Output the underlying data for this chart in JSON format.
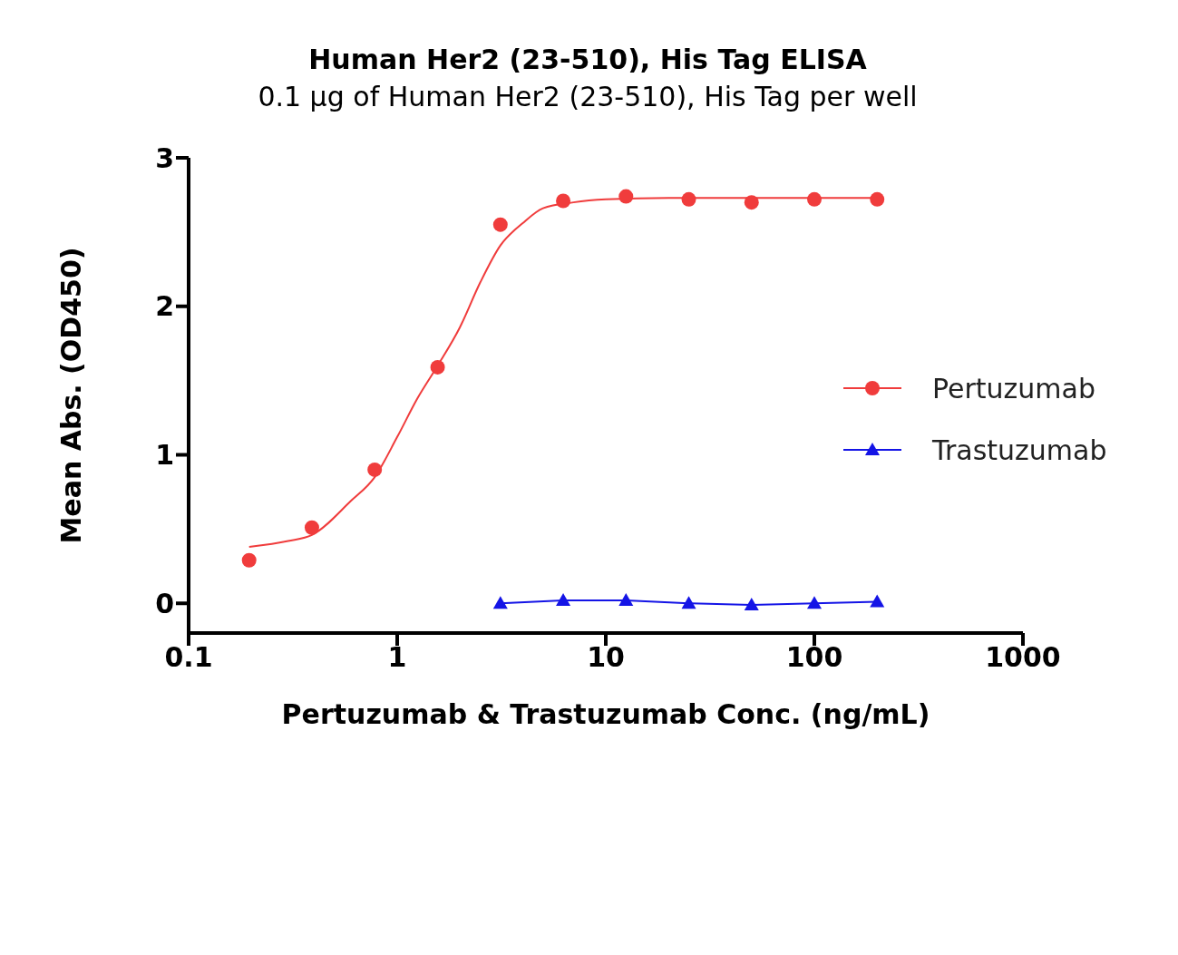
{
  "chart_data": {
    "type": "scatter",
    "title": "Human Her2 (23-510), His Tag ELISA",
    "subtitle": "0.1 μg of Human Her2 (23-510), His Tag per well",
    "xlabel": "Pertuzumab & Trastuzumab Conc. (ng/mL)",
    "ylabel": "Mean Abs. (OD450)",
    "log": "x",
    "xlim": [
      0.1,
      1000
    ],
    "xticks": [
      0.1,
      1,
      10,
      100,
      1000
    ],
    "ylim": [
      -0.2,
      3
    ],
    "yticks": [
      0,
      1,
      2,
      3
    ],
    "grid": false,
    "legend": "right",
    "series": [
      {
        "name": "Pertuzumab",
        "marker": "circle",
        "color": "#f03c3c",
        "x": [
          0.195,
          0.39,
          0.78,
          1.5625,
          3.125,
          6.25,
          12.5,
          25,
          50,
          100,
          200
        ],
        "values": [
          0.29,
          0.51,
          0.9,
          1.59,
          2.55,
          2.71,
          2.74,
          2.72,
          2.7,
          2.72,
          2.72
        ]
      },
      {
        "type": "line",
        "marker": "none",
        "color": "#f03c3c",
        "x": [
          0.195,
          0.3,
          0.39,
          0.6,
          0.78,
          1,
          1.25,
          1.5625,
          2,
          2.5,
          3.125,
          4,
          5,
          7,
          10,
          20,
          50,
          100,
          200
        ],
        "values": [
          0.38,
          0.42,
          0.46,
          0.69,
          0.85,
          1.12,
          1.38,
          1.6,
          1.86,
          2.16,
          2.41,
          2.56,
          2.66,
          2.7,
          2.72,
          2.73,
          2.73,
          2.73,
          2.73
        ]
      },
      {
        "name": "Trastuzumab",
        "type": "line",
        "marker": "triangle",
        "color": "#1414e6",
        "x": [
          3.125,
          6.25,
          12.5,
          25,
          50,
          100,
          200
        ],
        "values": [
          0.0,
          0.02,
          0.02,
          0.0,
          -0.01,
          0.0,
          0.01
        ]
      }
    ]
  }
}
